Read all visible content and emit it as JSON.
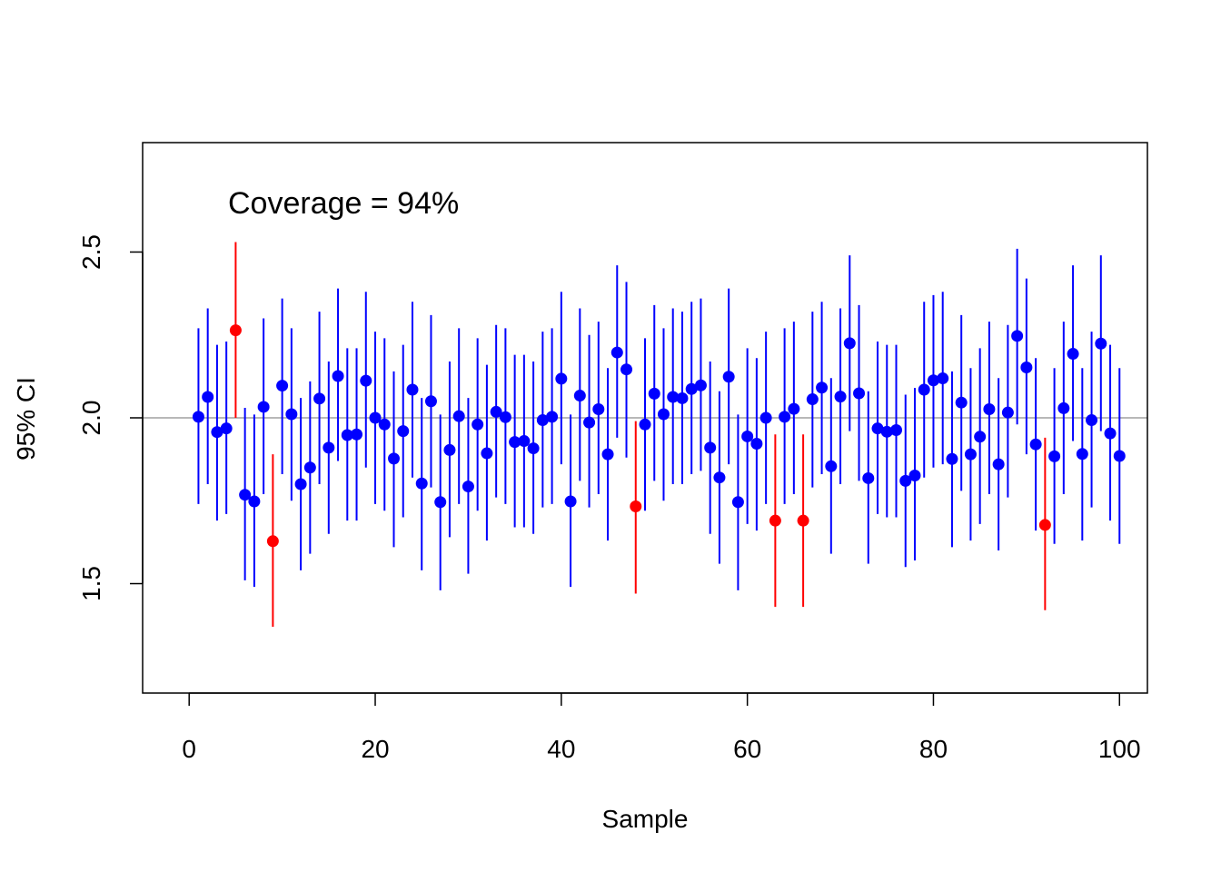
{
  "chart_data": {
    "type": "scatter",
    "title": "",
    "xlabel": "Sample",
    "ylabel": "95% CI",
    "annotation": "Coverage = 94%",
    "xlim": [
      -5,
      103
    ],
    "ylim": [
      1.17,
      2.83
    ],
    "xticks": [
      0,
      20,
      40,
      60,
      80,
      100
    ],
    "yticks": [
      1.5,
      2.0,
      2.5
    ],
    "xtick_labels": [
      "0",
      "20",
      "40",
      "60",
      "80",
      "100"
    ],
    "ytick_labels": [
      "1.5",
      "2.0",
      "2.5"
    ],
    "reference_line": 2.0,
    "grid": false,
    "colors": {
      "covers": "#0000ff",
      "misses": "#ff0000",
      "reference": "#a0a0a0"
    },
    "x": [
      1,
      2,
      3,
      4,
      5,
      6,
      7,
      8,
      9,
      10,
      11,
      12,
      13,
      14,
      15,
      16,
      17,
      18,
      19,
      20,
      21,
      22,
      23,
      24,
      25,
      26,
      27,
      28,
      29,
      30,
      31,
      32,
      33,
      34,
      35,
      36,
      37,
      38,
      39,
      40,
      41,
      42,
      43,
      44,
      45,
      46,
      47,
      48,
      49,
      50,
      51,
      52,
      53,
      54,
      55,
      56,
      57,
      58,
      59,
      60,
      61,
      62,
      63,
      64,
      65,
      66,
      67,
      68,
      69,
      70,
      71,
      72,
      73,
      74,
      75,
      76,
      77,
      78,
      79,
      80,
      81,
      82,
      83,
      84,
      85,
      86,
      87,
      88,
      89,
      90,
      91,
      92,
      93,
      94,
      95,
      96,
      97,
      98,
      99,
      100
    ],
    "estimate": [
      2.003,
      2.063,
      1.957,
      1.968,
      2.264,
      1.768,
      1.748,
      2.033,
      1.628,
      2.097,
      2.011,
      1.8,
      1.85,
      2.058,
      1.91,
      2.126,
      1.948,
      1.95,
      2.112,
      2.0,
      1.98,
      1.877,
      1.96,
      2.085,
      1.802,
      2.05,
      1.746,
      1.903,
      2.005,
      1.793,
      1.98,
      1.893,
      2.018,
      2.002,
      1.927,
      1.93,
      1.908,
      1.993,
      2.003,
      2.118,
      1.748,
      2.067,
      1.986,
      2.026,
      1.89,
      2.197,
      2.146,
      1.733,
      1.98,
      2.073,
      2.011,
      2.063,
      2.059,
      2.087,
      2.098,
      1.91,
      1.82,
      2.124,
      1.746,
      1.944,
      1.922,
      2.0,
      1.69,
      2.003,
      2.027,
      1.69,
      2.056,
      2.091,
      1.854,
      2.064,
      2.225,
      2.074,
      1.818,
      1.968,
      1.958,
      1.963,
      1.81,
      1.826,
      2.085,
      2.113,
      2.119,
      1.876,
      2.046,
      1.89,
      1.943,
      2.026,
      1.86,
      2.016,
      2.247,
      2.152,
      1.92,
      1.677,
      1.884,
      2.029,
      2.193,
      1.891,
      1.993,
      2.224,
      1.953,
      1.885
    ],
    "lower": [
      1.74,
      1.8,
      1.69,
      1.71,
      2.0,
      1.51,
      1.49,
      1.77,
      1.37,
      1.83,
      1.75,
      1.54,
      1.59,
      1.8,
      1.65,
      1.87,
      1.69,
      1.69,
      1.85,
      1.74,
      1.72,
      1.61,
      1.7,
      1.82,
      1.54,
      1.79,
      1.48,
      1.64,
      1.74,
      1.53,
      1.72,
      1.63,
      1.76,
      1.74,
      1.67,
      1.67,
      1.65,
      1.73,
      1.74,
      1.86,
      1.49,
      1.81,
      1.73,
      1.77,
      1.63,
      1.94,
      1.88,
      1.47,
      1.72,
      1.81,
      1.75,
      1.8,
      1.8,
      1.83,
      1.84,
      1.65,
      1.56,
      1.86,
      1.48,
      1.68,
      1.66,
      1.74,
      1.43,
      1.74,
      1.77,
      1.43,
      1.79,
      1.83,
      1.59,
      1.8,
      1.96,
      1.81,
      1.56,
      1.71,
      1.7,
      1.7,
      1.55,
      1.57,
      1.82,
      1.85,
      1.86,
      1.61,
      1.78,
      1.63,
      1.68,
      1.77,
      1.6,
      1.76,
      1.98,
      1.89,
      1.66,
      1.42,
      1.62,
      1.77,
      1.93,
      1.63,
      1.73,
      1.96,
      1.69,
      1.62
    ],
    "upper": [
      2.27,
      2.33,
      2.22,
      2.23,
      2.53,
      2.03,
      2.01,
      2.3,
      1.89,
      2.36,
      2.27,
      2.06,
      2.11,
      2.32,
      2.17,
      2.39,
      2.21,
      2.21,
      2.38,
      2.26,
      2.24,
      2.14,
      2.22,
      2.35,
      2.06,
      2.31,
      2.01,
      2.17,
      2.27,
      2.06,
      2.24,
      2.16,
      2.28,
      2.27,
      2.19,
      2.19,
      2.17,
      2.26,
      2.27,
      2.38,
      2.01,
      2.33,
      2.25,
      2.29,
      2.15,
      2.46,
      2.41,
      1.99,
      2.24,
      2.34,
      2.27,
      2.33,
      2.32,
      2.35,
      2.36,
      2.17,
      2.08,
      2.39,
      2.01,
      2.21,
      2.18,
      2.26,
      1.95,
      2.27,
      2.29,
      1.95,
      2.32,
      2.35,
      2.12,
      2.33,
      2.49,
      2.34,
      2.08,
      2.23,
      2.22,
      2.22,
      2.07,
      2.09,
      2.35,
      2.37,
      2.38,
      2.14,
      2.31,
      2.15,
      2.21,
      2.29,
      2.12,
      2.28,
      2.51,
      2.42,
      2.18,
      1.94,
      2.15,
      2.29,
      2.46,
      2.15,
      2.26,
      2.49,
      2.22,
      2.15
    ],
    "misses": [
      5,
      9,
      48,
      63,
      66,
      92
    ]
  }
}
